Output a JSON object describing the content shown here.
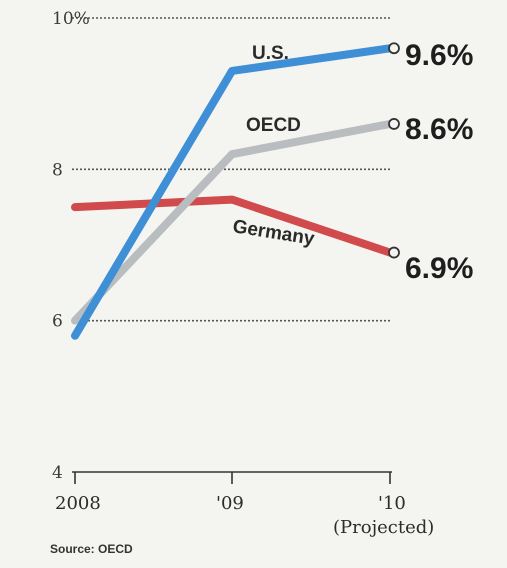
{
  "chart_data": {
    "type": "line",
    "x": [
      "2008",
      "'09",
      "'10"
    ],
    "x_sublabels": [
      "",
      "",
      "(Projected)"
    ],
    "y_ticks": [
      {
        "value": 10,
        "label": "10%"
      },
      {
        "value": 8,
        "label": "8"
      },
      {
        "value": 6,
        "label": "6"
      },
      {
        "value": 4,
        "label": "4"
      }
    ],
    "ylim": [
      4,
      10
    ],
    "series": [
      {
        "name": "U.S.",
        "values": [
          5.8,
          9.3,
          9.6
        ],
        "color": "#3f8fd6",
        "end_label": "9.6%"
      },
      {
        "name": "OECD",
        "values": [
          6.0,
          8.2,
          8.6
        ],
        "color": "#b9bdc0",
        "end_label": "8.6%"
      },
      {
        "name": "Germany",
        "values": [
          7.5,
          7.6,
          6.9
        ],
        "color": "#d14a4c",
        "end_label": "6.9%"
      }
    ],
    "source": "Source: OECD",
    "grid": "dotted horizontal at 8, 6 and 10",
    "legend": "inline labels on lines"
  }
}
